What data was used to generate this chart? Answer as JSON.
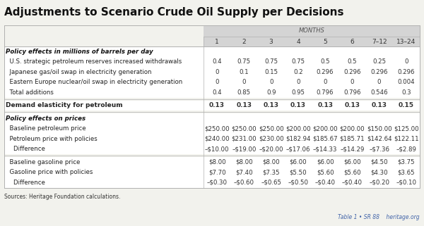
{
  "title": "Adjustments to Scenario Crude Oil Supply per Decisions",
  "months_header": "MONTHS",
  "col_headers": [
    "1",
    "2",
    "3",
    "4",
    "5",
    "6",
    "7–12",
    "13–24"
  ],
  "sections": [
    {
      "type": "section_header",
      "text": "Policy effects in millions of barrels per day"
    },
    {
      "type": "data_row",
      "label": "  U.S. strategic petroleum reserves increased withdrawals",
      "values": [
        "0.4",
        "0.75",
        "0.75",
        "0.75",
        "0.5",
        "0.5",
        "0.25",
        "0"
      ]
    },
    {
      "type": "data_row",
      "label": "  Japanese gas/oil swap in electricity generation",
      "values": [
        "0",
        "0.1",
        "0.15",
        "0.2",
        "0.296",
        "0.296",
        "0.296",
        "0.296"
      ]
    },
    {
      "type": "data_row",
      "label": "  Eastern Europe nuclear/oil swap in electricity generation",
      "values": [
        "0",
        "0",
        "0",
        "0",
        "0",
        "0",
        "0",
        "0.004"
      ]
    },
    {
      "type": "data_row",
      "label": "  Total additions",
      "values": [
        "0.4",
        "0.85",
        "0.9",
        "0.95",
        "0.796",
        "0.796",
        "0.546",
        "0.3"
      ]
    },
    {
      "type": "separator"
    },
    {
      "type": "bold_data_row",
      "label": "Demand elasticity for petroleum",
      "values": [
        "0.13",
        "0.13",
        "0.13",
        "0.13",
        "0.13",
        "0.13",
        "0.13",
        "0.15"
      ]
    },
    {
      "type": "separator"
    },
    {
      "type": "section_header",
      "text": "Policy effects on prices"
    },
    {
      "type": "data_row",
      "label": "  Baseline petroleum price",
      "values": [
        "$250.00",
        "$250.00",
        "$250.00",
        "$200.00",
        "$200.00",
        "$200.00",
        "$150.00",
        "$125.00"
      ]
    },
    {
      "type": "data_row",
      "label": "  Petroleum price with policies",
      "values": [
        "$240.00",
        "$231.00",
        "$230.00",
        "$182.94",
        "$185.67",
        "$185.71",
        "$142.64",
        "$122.11"
      ]
    },
    {
      "type": "data_row",
      "label": "    Difference",
      "values": [
        "–$10.00",
        "–$19.00",
        "–$20.00",
        "–$17.06",
        "–$14.33",
        "–$14.29",
        "–$7.36",
        "–$2.89"
      ]
    },
    {
      "type": "separator"
    },
    {
      "type": "data_row",
      "label": "  Baseline gasoline price",
      "values": [
        "$8.00",
        "$8.00",
        "$8.00",
        "$6.00",
        "$6.00",
        "$6.00",
        "$4.50",
        "$3.75"
      ]
    },
    {
      "type": "data_row",
      "label": "  Gasoline price with policies",
      "values": [
        "$7.70",
        "$7.40",
        "$7.35",
        "$5.50",
        "$5.60",
        "$5.60",
        "$4.30",
        "$3.65"
      ]
    },
    {
      "type": "data_row",
      "label": "    Difference",
      "values": [
        "–$0.30",
        "–$0.60",
        "–$0.65",
        "–$0.50",
        "–$0.40",
        "–$0.40",
        "–$0.20",
        "–$0.10"
      ]
    }
  ],
  "footer_left": "Sources: Heritage Foundation calculations.",
  "footer_right": "Table 1 • SR 88    heritage.org",
  "bg_color": "#f2f2ed",
  "header_bg": "#d4d4d4",
  "white_bg": "#ffffff",
  "border_color": "#b0b0b0",
  "title_color": "#111111",
  "text_color": "#333333",
  "footer_right_color": "#4466aa"
}
